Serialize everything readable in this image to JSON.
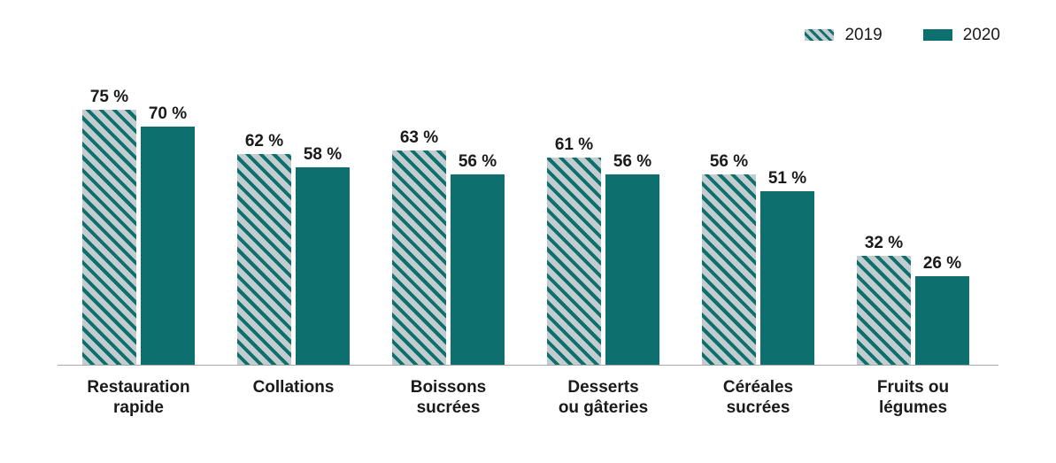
{
  "colors": {
    "teal": "#0d6f6e",
    "hatch-bg": "#c3cdd0",
    "axis": "#a8a8a8",
    "text": "#1a1a1a"
  },
  "legend": {
    "position": "top-right",
    "items": [
      {
        "label": "2019",
        "swatch": "hatched"
      },
      {
        "label": "2020",
        "swatch": "solid"
      }
    ]
  },
  "chart_data": {
    "type": "bar",
    "title": "",
    "xlabel": "",
    "ylabel": "",
    "ylim": [
      0,
      100
    ],
    "grid": false,
    "y_axis_visible": false,
    "x_baseline_visible": true,
    "value_suffix": " %",
    "legend_position": "top-right",
    "categories": [
      "Restauration rapide",
      "Collations",
      "Boissons sucrées",
      "Desserts ou gâteries",
      "Céréales sucrées",
      "Fruits ou légumes"
    ],
    "category_lines": [
      [
        "Restauration",
        "rapide"
      ],
      [
        "Collations"
      ],
      [
        "Boissons",
        "sucrées"
      ],
      [
        "Desserts",
        "ou gâteries"
      ],
      [
        "Céréales",
        "sucrées"
      ],
      [
        "Fruits ou",
        "légumes"
      ]
    ],
    "series": [
      {
        "name": "2019",
        "style": "hatched",
        "values": [
          75,
          62,
          63,
          61,
          56,
          32
        ],
        "labels": [
          "75 %",
          "62 %",
          "63 %",
          "61 %",
          "56 %",
          "32 %"
        ]
      },
      {
        "name": "2020",
        "style": "solid",
        "values": [
          70,
          58,
          56,
          56,
          51,
          26
        ],
        "labels": [
          "70 %",
          "58 %",
          "56 %",
          "56 %",
          "51 %",
          "26 %"
        ]
      }
    ]
  }
}
